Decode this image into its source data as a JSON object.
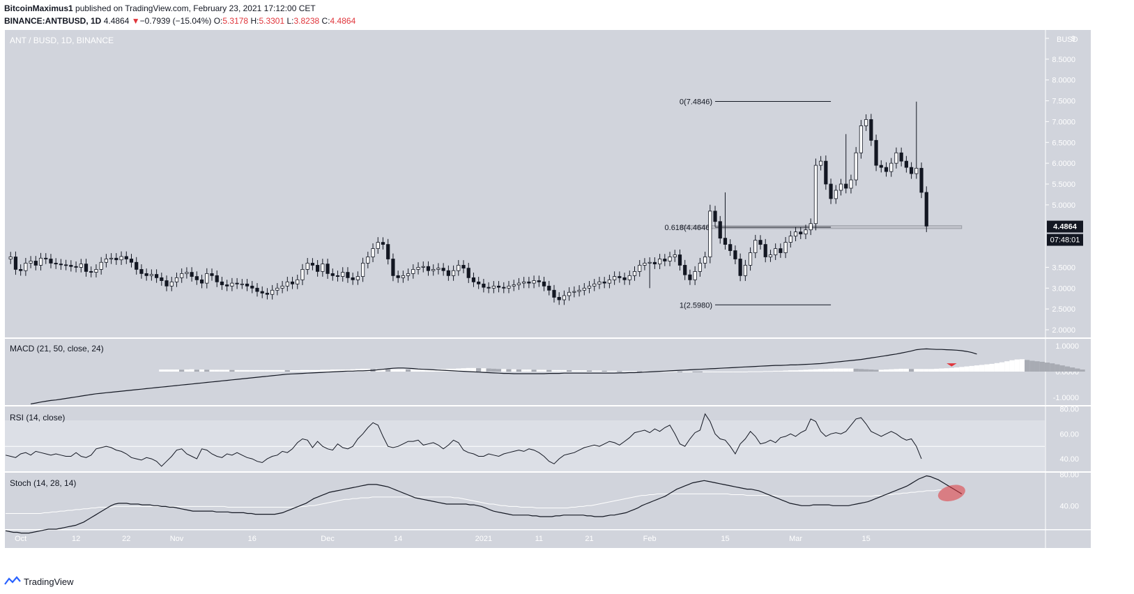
{
  "header": {
    "author": "BitcoinMaximus1",
    "published_text": "published on TradingView.com, February 23, 2021 17:12:00 CET",
    "symbol": "BINANCE:ANTBUSD, 1D",
    "last": "4.4864",
    "change_arrow": "▼",
    "change": "−0.7939 (−15.04%)",
    "o_label": "O:",
    "o_value": "5.3178",
    "h_label": "H:",
    "h_value": "5.3301",
    "l_label": "L:",
    "l_value": "3.8238",
    "c_label": "C:",
    "c_value": "4.4864"
  },
  "footer": {
    "brand": "TradingView",
    "icon": "tradingview-logo-icon"
  },
  "colors": {
    "panel_bg": "#d1d4dc",
    "rsi_band": "#dcdfe6",
    "candle_up": "#ffffff",
    "candle_down": "#131722",
    "accent_red": "#e0353b",
    "label_bg": "#131722"
  },
  "chart_data": [
    {
      "type": "candlestick",
      "title": "ANT / BUSD, 1D, BINANCE",
      "currency_label": "BUSD",
      "x_ticks": [
        "Oct",
        "12",
        "22",
        "Nov",
        "16",
        "Dec",
        "14",
        "2021",
        "11",
        "21",
        "Feb",
        "15",
        "Mar",
        "15"
      ],
      "y_ticks": [
        "9",
        "8.5000",
        "8.0000",
        "7.5000",
        "7.0000",
        "6.5000",
        "6.0000",
        "5.5000",
        "5.0000",
        "3.5000",
        "3.0000",
        "2.5000",
        "2.0000"
      ],
      "ylim": [
        2.0,
        9.0
      ],
      "last_price_label": "4.4864",
      "countdown_label": "07:48:01",
      "fib_levels": [
        {
          "label": "0(7.4846)",
          "value": 7.4846
        },
        {
          "label": "0.618(4.4646)",
          "value": 4.4646
        },
        {
          "label": "1(2.5980)",
          "value": 2.598
        }
      ],
      "support_zone": [
        4.43,
        4.5
      ],
      "closes": [
        3.75,
        3.45,
        3.42,
        3.6,
        3.65,
        3.55,
        3.72,
        3.7,
        3.6,
        3.58,
        3.56,
        3.55,
        3.52,
        3.5,
        3.58,
        3.4,
        3.38,
        3.45,
        3.62,
        3.7,
        3.72,
        3.68,
        3.76,
        3.7,
        3.62,
        3.45,
        3.35,
        3.3,
        3.33,
        3.25,
        3.18,
        3.05,
        3.15,
        3.25,
        3.35,
        3.38,
        3.28,
        3.2,
        3.12,
        3.35,
        3.3,
        3.15,
        3.08,
        3.05,
        3.12,
        3.1,
        3.1,
        3.05,
        3.0,
        2.92,
        2.88,
        2.85,
        2.95,
        3.0,
        3.05,
        3.15,
        3.1,
        3.2,
        3.45,
        3.6,
        3.55,
        3.4,
        3.58,
        3.35,
        3.3,
        3.28,
        3.38,
        3.25,
        3.2,
        3.28,
        3.6,
        3.75,
        3.95,
        4.1,
        4.05,
        3.7,
        3.3,
        3.25,
        3.3,
        3.35,
        3.45,
        3.5,
        3.52,
        3.42,
        3.45,
        3.48,
        3.42,
        3.3,
        3.42,
        3.55,
        3.48,
        3.25,
        3.15,
        3.1,
        3.02,
        3.0,
        3.05,
        3.02,
        3.0,
        3.05,
        3.08,
        3.12,
        3.15,
        3.12,
        3.18,
        3.15,
        3.05,
        2.95,
        2.78,
        2.72,
        2.82,
        2.9,
        2.92,
        2.95,
        3.0,
        3.05,
        3.1,
        3.15,
        3.12,
        3.2,
        3.28,
        3.25,
        3.2,
        3.3,
        3.4,
        3.55,
        3.6,
        3.62,
        3.58,
        3.7,
        3.65,
        3.75,
        3.8,
        3.55,
        3.32,
        3.2,
        3.4,
        3.6,
        3.75,
        4.85,
        4.6,
        4.2,
        4.05,
        3.9,
        3.7,
        3.3,
        3.55,
        3.85,
        4.15,
        4.05,
        3.75,
        3.8,
        3.95,
        3.85,
        4.1,
        4.25,
        4.35,
        4.3,
        4.4,
        4.55,
        5.95,
        6.05,
        5.5,
        5.15,
        5.35,
        5.5,
        5.4,
        5.6,
        6.25,
        6.9,
        7.05,
        6.55,
        5.95,
        5.9,
        5.8,
        6.0,
        6.25,
        6.05,
        5.9,
        5.75,
        5.88,
        5.3,
        4.49
      ]
    },
    {
      "type": "line",
      "title": "MACD (21, 50, close, 24)",
      "y_ticks": [
        "1.0000",
        "0.0000",
        "-1.0000"
      ],
      "ylim": [
        -1.3,
        1.1
      ],
      "macd": [
        -1.25,
        -1.22,
        -1.18,
        -1.15,
        -1.12,
        -1.1,
        -1.07,
        -1.04,
        -1.01,
        -0.98,
        -0.95,
        -0.92,
        -0.89,
        -0.86,
        -0.84,
        -0.82,
        -0.8,
        -0.78,
        -0.76,
        -0.74,
        -0.72,
        -0.7,
        -0.68,
        -0.66,
        -0.64,
        -0.62,
        -0.6,
        -0.58,
        -0.56,
        -0.54,
        -0.52,
        -0.5,
        -0.48,
        -0.46,
        -0.44,
        -0.42,
        -0.4,
        -0.38,
        -0.36,
        -0.34,
        -0.32,
        -0.3,
        -0.28,
        -0.26,
        -0.24,
        -0.22,
        -0.2,
        -0.18,
        -0.16,
        -0.14,
        -0.12,
        -0.1,
        -0.09,
        -0.08,
        -0.07,
        -0.06,
        -0.05,
        -0.04,
        -0.03,
        -0.02,
        -0.01,
        0.0,
        0.01,
        0.02,
        0.02,
        0.03,
        0.03,
        0.04,
        0.05,
        0.07,
        0.09,
        0.11,
        0.13,
        0.14,
        0.14,
        0.13,
        0.12,
        0.1,
        0.09,
        0.08,
        0.07,
        0.06,
        0.05,
        0.04,
        0.03,
        0.02,
        0.01,
        0.0,
        -0.01,
        -0.02,
        -0.03,
        -0.04,
        -0.05,
        -0.06,
        -0.07,
        -0.07,
        -0.08,
        -0.08,
        -0.08,
        -0.08,
        -0.08,
        -0.08,
        -0.08,
        -0.07,
        -0.07,
        -0.07,
        -0.06,
        -0.06,
        -0.06,
        -0.06,
        -0.06,
        -0.06,
        -0.06,
        -0.06,
        -0.06,
        -0.06,
        -0.06,
        -0.05,
        -0.05,
        -0.04,
        -0.04,
        -0.03,
        -0.02,
        -0.01,
        0.0,
        0.01,
        0.02,
        0.03,
        0.04,
        0.05,
        0.06,
        0.07,
        0.08,
        0.09,
        0.1,
        0.11,
        0.12,
        0.13,
        0.14,
        0.15,
        0.16,
        0.17,
        0.18,
        0.19,
        0.2,
        0.21,
        0.22,
        0.23,
        0.24,
        0.24,
        0.25,
        0.26,
        0.26,
        0.27,
        0.28,
        0.29,
        0.3,
        0.31,
        0.33,
        0.35,
        0.37,
        0.39,
        0.41,
        0.43,
        0.45,
        0.47,
        0.5,
        0.53,
        0.56,
        0.59,
        0.62,
        0.65,
        0.68,
        0.72,
        0.76,
        0.8,
        0.85,
        0.87,
        0.88,
        0.87,
        0.86,
        0.86,
        0.85,
        0.84,
        0.83,
        0.81,
        0.78,
        0.74,
        0.68
      ],
      "histogram": [
        0.08,
        0.08,
        0.08,
        0.08,
        0.07,
        0.08,
        0.09,
        0.07,
        0.08,
        0.07,
        0.07,
        0.07,
        0.07,
        0.07,
        0.06,
        0.06,
        0.06,
        0.06,
        0.06,
        0.06,
        0.06,
        0.06,
        0.06,
        0.06,
        0.06,
        0.05,
        0.05,
        0.05,
        0.06,
        0.06,
        0.06,
        0.06,
        0.07,
        0.07,
        0.08,
        0.08,
        0.08,
        0.08,
        0.09,
        0.1,
        0.11,
        0.11,
        0.1,
        0.1,
        0.1,
        0.09,
        0.09,
        0.09,
        0.09,
        0.08,
        0.08,
        0.08,
        0.08,
        0.08,
        0.09,
        0.09,
        0.1,
        0.11,
        0.11,
        0.12,
        0.13,
        0.14,
        0.14,
        0.13,
        0.13,
        0.12,
        0.11,
        0.1,
        0.1,
        0.09,
        0.09,
        0.08,
        0.08,
        0.08,
        0.07,
        0.07,
        0.07,
        0.06,
        0.06,
        0.06,
        0.06,
        0.05,
        0.05,
        0.05,
        0.05,
        0.04,
        0.04,
        0.04,
        0.03,
        0.03,
        0.03,
        0.02,
        0.02,
        0.02,
        0.02,
        0.01,
        0.01,
        0.01,
        0.01,
        0.01,
        0.01,
        0.01,
        0.01,
        0.0,
        0.0,
        0.0,
        -0.01,
        -0.02,
        -0.02,
        -0.02,
        -0.02,
        -0.02,
        -0.01,
        -0.01,
        -0.01,
        0.0,
        0.0,
        0.01,
        0.01,
        0.01,
        0.02,
        0.02,
        0.03,
        0.03,
        0.04,
        0.05,
        0.05,
        0.06,
        0.07,
        0.08,
        0.09,
        0.1,
        0.1,
        0.11,
        0.12,
        0.12,
        0.12,
        0.12,
        0.11,
        0.1,
        0.09,
        0.08,
        0.07,
        0.07,
        0.08,
        0.09,
        0.1,
        0.11,
        0.11,
        0.1,
        0.1,
        0.1,
        0.1,
        0.1,
        0.11,
        0.12,
        0.13,
        0.14,
        0.16,
        0.18,
        0.2,
        0.22,
        0.24,
        0.26,
        0.28,
        0.3,
        0.33,
        0.36,
        0.4,
        0.44,
        0.47,
        0.48,
        0.45,
        0.42,
        0.4,
        0.38,
        0.35,
        0.32,
        0.28,
        0.24,
        0.2,
        0.16,
        0.12,
        0.08
      ]
    },
    {
      "type": "line",
      "title": "RSI (14, close)",
      "y_ticks": [
        "80.00",
        "60.00",
        "40.00"
      ],
      "ylim": [
        30,
        82
      ],
      "band": [
        30,
        70
      ],
      "middle_line": 50,
      "values": [
        43,
        42,
        41,
        44,
        45,
        43,
        46,
        45,
        44,
        43,
        44,
        43,
        42,
        42,
        45,
        42,
        41,
        43,
        48,
        49,
        50,
        49,
        47,
        46,
        44,
        41,
        40,
        39,
        41,
        40,
        38,
        34,
        38,
        42,
        47,
        48,
        44,
        42,
        40,
        48,
        47,
        44,
        42,
        41,
        44,
        43,
        45,
        43,
        41,
        40,
        38,
        37,
        40,
        42,
        43,
        46,
        45,
        48,
        53,
        56,
        55,
        49,
        54,
        50,
        48,
        47,
        52,
        49,
        48,
        50,
        56,
        60,
        65,
        69,
        67,
        58,
        50,
        49,
        50,
        52,
        54,
        54,
        55,
        51,
        52,
        53,
        51,
        48,
        51,
        55,
        53,
        47,
        45,
        44,
        42,
        42,
        44,
        43,
        42,
        44,
        45,
        46,
        47,
        46,
        48,
        47,
        45,
        42,
        38,
        36,
        40,
        43,
        44,
        45,
        47,
        49,
        50,
        51,
        50,
        52,
        54,
        53,
        51,
        54,
        57,
        61,
        62,
        63,
        61,
        64,
        62,
        65,
        67,
        60,
        52,
        50,
        56,
        61,
        63,
        76,
        70,
        60,
        56,
        55,
        50,
        44,
        52,
        56,
        62,
        58,
        52,
        53,
        55,
        53,
        57,
        58,
        60,
        58,
        61,
        63,
        72,
        70,
        62,
        58,
        60,
        61,
        60,
        62,
        67,
        72,
        73,
        68,
        62,
        60,
        58,
        60,
        62,
        60,
        57,
        55,
        56,
        50,
        40
      ]
    },
    {
      "type": "line",
      "title": "Stoch (14, 28, 14)",
      "y_ticks": [
        "80.00",
        "40.00"
      ],
      "ylim": [
        10,
        82
      ],
      "k": [
        8,
        7,
        6,
        6,
        5,
        5,
        5,
        6,
        7,
        8,
        9,
        10,
        10,
        10,
        11,
        12,
        13,
        14,
        15,
        17,
        19,
        22,
        25,
        28,
        31,
        34,
        37,
        40,
        42,
        43,
        43,
        43,
        42,
        42,
        42,
        41,
        41,
        41,
        40,
        40,
        39,
        39,
        38,
        38,
        37,
        36,
        35,
        34,
        33,
        33,
        33,
        33,
        33,
        33,
        32,
        32,
        32,
        32,
        31,
        31,
        31,
        31,
        30,
        30,
        29,
        29,
        29,
        29,
        29,
        29,
        30,
        31,
        33,
        35,
        37,
        39,
        41,
        43,
        46,
        49,
        51,
        53,
        55,
        57,
        58,
        59,
        60,
        61,
        62,
        63,
        64,
        65,
        66,
        67,
        67,
        67,
        66,
        65,
        64,
        62,
        60,
        58,
        56,
        54,
        52,
        50,
        49,
        48,
        47,
        46,
        45,
        44,
        43,
        42,
        42,
        42,
        42,
        42,
        42,
        41,
        41,
        40,
        39,
        37,
        35,
        33,
        32,
        31,
        30,
        29,
        28,
        28,
        28,
        28,
        28,
        27,
        27,
        26,
        26,
        26,
        26,
        27,
        27,
        28,
        28,
        28,
        28,
        28,
        28,
        27,
        27,
        26,
        26,
        26,
        27,
        28,
        28,
        29,
        30,
        31,
        33,
        35,
        37,
        40,
        42,
        44,
        46,
        48,
        50,
        52,
        55,
        58,
        61,
        63,
        65,
        67,
        69,
        70,
        71,
        72,
        71,
        70,
        69,
        68,
        67,
        66,
        65,
        64,
        63,
        62,
        61,
        61,
        60,
        59,
        57,
        55,
        53,
        51,
        49,
        47,
        45,
        43,
        42,
        41,
        40,
        40,
        40,
        41,
        41,
        41,
        41,
        41,
        40,
        40,
        40,
        40,
        40,
        41,
        42,
        43,
        44,
        45,
        47,
        49,
        51,
        53,
        55,
        57,
        59,
        61,
        63,
        65,
        68,
        71,
        74,
        76,
        78,
        77,
        75,
        73,
        70,
        67,
        64,
        61,
        58,
        55
      ],
      "d": [
        30,
        30,
        30,
        30,
        30,
        30,
        30,
        30,
        30,
        30,
        31,
        31,
        32,
        32,
        33,
        33,
        34,
        34,
        35,
        35,
        36,
        36,
        37,
        37,
        38,
        38,
        38,
        38,
        39,
        39,
        39,
        39,
        39,
        39,
        39,
        39,
        39,
        39,
        39,
        39,
        39,
        39,
        39,
        39,
        39,
        39,
        39,
        39,
        39,
        39,
        39,
        39,
        39,
        39,
        39,
        39,
        39,
        38,
        38,
        38,
        38,
        38,
        38,
        38,
        38,
        38,
        38,
        38,
        38,
        38,
        38,
        38,
        38,
        38,
        38,
        38,
        39,
        39,
        40,
        40,
        41,
        42,
        43,
        44,
        45,
        46,
        47,
        48,
        48,
        49,
        49,
        50,
        50,
        50,
        51,
        51,
        51,
        51,
        51,
        51,
        51,
        51,
        51,
        51,
        51,
        51,
        51,
        51,
        51,
        51,
        51,
        51,
        51,
        51,
        51,
        50,
        50,
        49,
        48,
        47,
        46,
        45,
        44,
        43,
        42,
        42,
        41,
        40,
        40,
        39,
        39,
        39,
        38,
        38,
        38,
        38,
        37,
        37,
        37,
        37,
        37,
        37,
        37,
        37,
        37,
        38,
        38,
        39,
        39,
        40,
        40,
        41,
        42,
        43,
        44,
        45,
        46,
        47,
        48,
        49,
        50,
        51,
        52,
        53,
        53,
        54,
        54,
        55,
        55,
        55,
        55,
        55,
        55,
        55,
        55,
        55,
        55,
        55,
        55,
        55,
        55,
        55,
        55,
        55,
        55,
        55,
        54,
        54,
        54,
        54,
        53,
        53,
        53,
        53,
        53,
        53,
        53,
        53,
        52,
        52,
        52,
        52,
        52,
        52,
        52,
        52,
        52,
        52,
        52,
        52,
        52,
        52,
        52,
        52,
        52,
        52,
        52,
        52,
        52,
        52,
        52,
        52,
        52,
        53,
        53,
        53,
        54,
        54,
        55,
        55,
        56,
        56,
        57,
        57,
        58,
        58,
        59,
        59,
        59,
        60,
        60
      ]
    }
  ]
}
